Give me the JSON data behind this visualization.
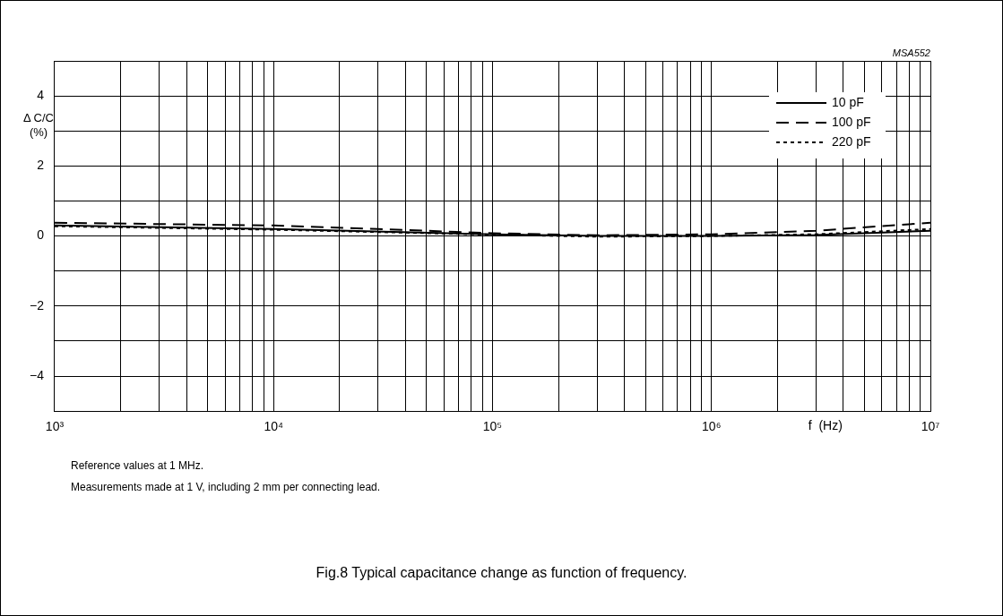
{
  "chart_data": {
    "type": "line",
    "title": "Fig.8  Typical capacitance change as function of frequency.",
    "xlabel": "f  (Hz)",
    "ylabel": "Δ C/C\n(%)",
    "log": "x",
    "grid": true,
    "legend": "top right",
    "marker": "none",
    "annotations": [
      "MSA552",
      "Reference values at 1 MHz.",
      "Measurements made at 1 V, including 2 mm per connecting lead."
    ],
    "xlim": [
      1000,
      10000000
    ],
    "xticks": [
      {
        "value": 1000,
        "label": "10³"
      },
      {
        "value": 2000,
        "label": null
      },
      {
        "value": 3000,
        "label": null
      },
      {
        "value": 4000,
        "label": null
      },
      {
        "value": 5000,
        "label": null
      },
      {
        "value": 6000,
        "label": null
      },
      {
        "value": 7000,
        "label": null
      },
      {
        "value": 8000,
        "label": null
      },
      {
        "value": 9000,
        "label": null
      },
      {
        "value": 10000,
        "label": "10⁴"
      },
      {
        "value": 20000,
        "label": null
      },
      {
        "value": 30000,
        "label": null
      },
      {
        "value": 40000,
        "label": null
      },
      {
        "value": 50000,
        "label": null
      },
      {
        "value": 60000,
        "label": null
      },
      {
        "value": 70000,
        "label": null
      },
      {
        "value": 80000,
        "label": null
      },
      {
        "value": 90000,
        "label": null
      },
      {
        "value": 100000,
        "label": "10⁵"
      },
      {
        "value": 200000,
        "label": null
      },
      {
        "value": 300000,
        "label": null
      },
      {
        "value": 400000,
        "label": null
      },
      {
        "value": 500000,
        "label": null
      },
      {
        "value": 600000,
        "label": null
      },
      {
        "value": 700000,
        "label": null
      },
      {
        "value": 800000,
        "label": null
      },
      {
        "value": 900000,
        "label": null
      },
      {
        "value": 1000000,
        "label": "10⁶"
      },
      {
        "value": 2000000,
        "label": null
      },
      {
        "value": 3000000,
        "label": null
      },
      {
        "value": 4000000,
        "label": null
      },
      {
        "value": 5000000,
        "label": null
      },
      {
        "value": 6000000,
        "label": null
      },
      {
        "value": 7000000,
        "label": null
      },
      {
        "value": 8000000,
        "label": null
      },
      {
        "value": 9000000,
        "label": null
      },
      {
        "value": 10000000,
        "label": "10⁷"
      }
    ],
    "ylim": [
      -5,
      5
    ],
    "yticks": [
      {
        "value": -5,
        "label": null
      },
      -4,
      {
        "value": -3,
        "label": null
      },
      -2,
      {
        "value": -1,
        "label": null
      },
      0,
      {
        "value": 1,
        "label": null
      },
      2,
      {
        "value": 3,
        "label": null
      },
      4,
      {
        "value": 5,
        "label": null
      }
    ],
    "series": [
      {
        "name": "10 pF",
        "color": "#000000",
        "line_style": "solid",
        "x": [
          1000,
          10000,
          100000,
          300000,
          1000000,
          3000000,
          10000000
        ],
        "values": [
          0.3,
          0.2,
          0.05,
          0.0,
          0.0,
          0.03,
          0.15
        ]
      },
      {
        "name": "100 pF",
        "color": "#000000",
        "line_style": "dashed",
        "x": [
          1000,
          10000,
          30000,
          100000,
          300000,
          1000000,
          3000000,
          10000000
        ],
        "values": [
          0.38,
          0.3,
          0.2,
          0.08,
          0.02,
          0.05,
          0.15,
          0.38
        ]
      },
      {
        "name": "220 pF",
        "color": "#000000",
        "line_style": "dotted",
        "x": [
          1000,
          10000,
          100000,
          300000,
          1000000,
          3000000,
          10000000
        ],
        "values": [
          0.28,
          0.18,
          0.04,
          -0.02,
          0.0,
          0.05,
          0.2
        ]
      }
    ]
  }
}
